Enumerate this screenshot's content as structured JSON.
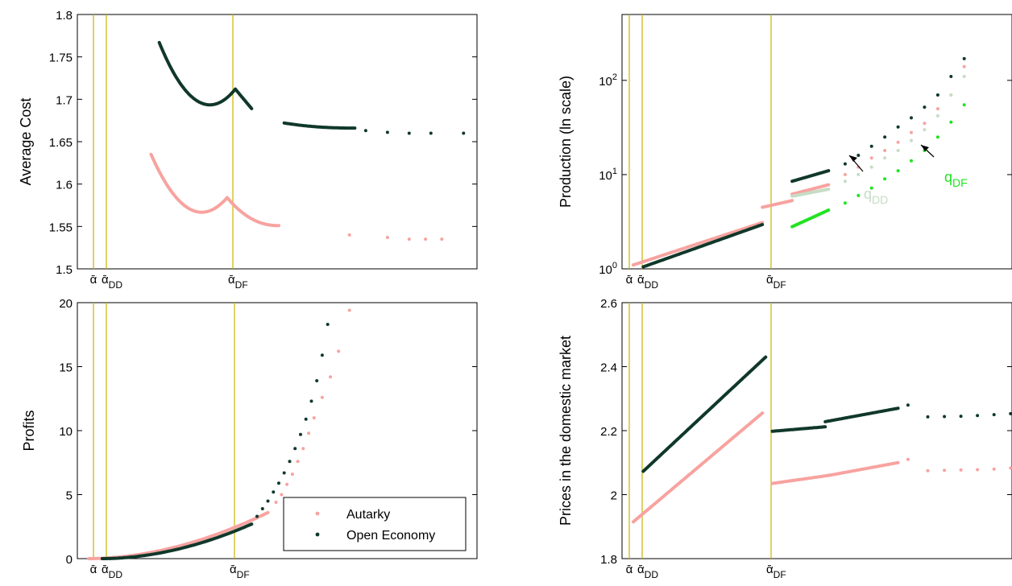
{
  "colors": {
    "autarky": "#f7a3a0",
    "open_economy": "#10382a",
    "q_dd": "#c6dcc6",
    "q_df": "#22e322",
    "threshold_lines": "#c8b400"
  },
  "threshold_labels": {
    "alpha_bar": "ᾱ",
    "dd": "DD",
    "df": "DF"
  },
  "chart_data": [
    {
      "type": "scatter",
      "id": "average-cost",
      "ylabel": "Average Cost",
      "xlabel": "",
      "ylim": [
        1.5,
        1.8
      ],
      "yticks": [
        "1.5",
        "1.55",
        "1.6",
        "1.65",
        "1.7",
        "1.75",
        "1.8"
      ],
      "x_thresholds": [
        "ᾱ",
        "ᾱDD",
        "ᾱDF"
      ],
      "series": [
        {
          "name": "Autarky",
          "segments": [
            {
              "x": [
                1.15,
                2.55
              ],
              "y": [
                1.635,
                1.584
              ],
              "curve": "dip",
              "dip_y": 1.571
            },
            {
              "x": [
                2.55,
                3.5
              ],
              "y": [
                1.584,
                1.551
              ],
              "curve": "decay"
            }
          ],
          "points_x": [
            4.8,
            5.5,
            5.9,
            6.2,
            6.5
          ],
          "points_y": [
            1.54,
            1.537,
            1.535,
            1.535,
            1.535
          ]
        },
        {
          "name": "Open Economy",
          "segments": [
            {
              "x": [
                1.3,
                2.7
              ],
              "y": [
                1.767,
                1.712
              ],
              "curve": "dip",
              "dip_y": 1.698
            },
            {
              "x": [
                2.7,
                3.0
              ],
              "y": [
                1.712,
                1.689
              ],
              "curve": "line"
            },
            {
              "x": [
                3.6,
                4.9
              ],
              "y": [
                1.672,
                1.666
              ],
              "curve": "decay"
            }
          ],
          "points_x": [
            5.1,
            5.5,
            5.9,
            6.3,
            6.9
          ],
          "points_y": [
            1.663,
            1.661,
            1.66,
            1.66,
            1.66
          ]
        }
      ]
    },
    {
      "type": "scatter",
      "id": "production",
      "ylabel": "Production (ln scale)",
      "xlabel": "",
      "log_scale": true,
      "ylim": [
        1,
        500
      ],
      "yticks": [
        "10",
        "10",
        "10"
      ],
      "ytick_exponents": [
        "0",
        "1",
        "2"
      ],
      "x_thresholds": [
        "ᾱ",
        "ᾱDD",
        "ᾱDF"
      ],
      "annotations": [
        {
          "text": "q",
          "sub": "DD",
          "target": "q_dd"
        },
        {
          "text": "q",
          "sub": "DF",
          "target": "q_df"
        }
      ],
      "series": [
        {
          "name": "Autarky",
          "segments": [
            {
              "x": [
                0.0,
                1.95
              ],
              "y": [
                1.1,
                3.1
              ]
            },
            {
              "x": [
                1.95,
                2.4
              ],
              "y": [
                4.5,
                5.3
              ]
            },
            {
              "x": [
                2.4,
                2.95
              ],
              "y": [
                6.2,
                7.8
              ]
            }
          ],
          "points_x": [
            3.2,
            3.4,
            3.6,
            3.8,
            4.0,
            4.2,
            4.4,
            4.6,
            4.8,
            5.0
          ],
          "points_y": [
            10,
            12,
            15,
            18,
            22,
            28,
            35,
            50,
            70,
            140
          ]
        },
        {
          "name": "Open Economy",
          "segments": [
            {
              "x": [
                0.15,
                1.95
              ],
              "y": [
                1.05,
                2.95
              ]
            },
            {
              "x": [
                2.4,
                2.95
              ],
              "y": [
                8.5,
                11
              ]
            }
          ],
          "points_x": [
            3.2,
            3.4,
            3.6,
            3.8,
            4.0,
            4.2,
            4.4,
            4.6,
            4.8,
            5.0
          ],
          "points_y": [
            13,
            16,
            20,
            25,
            32,
            40,
            52,
            70,
            110,
            170
          ]
        },
        {
          "name": "q_DD",
          "segments": [
            {
              "x": [
                2.4,
                2.95
              ],
              "y": [
                5.9,
                7.0
              ]
            }
          ],
          "points_x": [
            3.2,
            3.4,
            3.6,
            3.8,
            4.0,
            4.2,
            4.4,
            4.6,
            4.8,
            5.0
          ],
          "points_y": [
            8.5,
            10,
            12,
            15,
            18,
            23,
            30,
            42,
            70,
            110
          ]
        },
        {
          "name": "q_DF",
          "segments": [
            {
              "x": [
                2.4,
                2.95
              ],
              "y": [
                2.8,
                4.2
              ]
            }
          ],
          "points_x": [
            3.2,
            3.4,
            3.6,
            3.8,
            4.0,
            4.2,
            4.4,
            4.6,
            4.8,
            5.0
          ],
          "points_y": [
            5.0,
            6.0,
            7.2,
            9.0,
            11,
            14,
            18,
            25,
            36,
            55
          ]
        }
      ]
    },
    {
      "type": "scatter",
      "id": "profits",
      "ylabel": "Profits",
      "xlabel": "",
      "ylim": [
        0,
        20
      ],
      "yticks": [
        "0",
        "5",
        "10",
        "15",
        "20"
      ],
      "x_thresholds": [
        "ᾱ",
        "ᾱDD",
        "ᾱDF"
      ],
      "legend": {
        "position": "bottom-right",
        "entries": [
          "Autarky",
          "Open Economy"
        ]
      },
      "series": [
        {
          "name": "Autarky",
          "segments": [
            {
              "x": [
                0.0,
                3.3
              ],
              "y": [
                0.0,
                3.6
              ],
              "curve": "convex"
            }
          ],
          "points_x": [
            3.45,
            3.55,
            3.65,
            3.75,
            3.85,
            3.95,
            4.05,
            4.15,
            4.3,
            4.45,
            4.6,
            4.8
          ],
          "points_y": [
            4.4,
            5.0,
            5.8,
            6.6,
            7.6,
            8.6,
            9.8,
            11.0,
            12.6,
            14.2,
            16.2,
            19.4
          ]
        },
        {
          "name": "Open Economy",
          "segments": [
            {
              "x": [
                0.25,
                3.0
              ],
              "y": [
                0.0,
                2.7
              ],
              "curve": "convex"
            }
          ],
          "points_x": [
            3.1,
            3.2,
            3.3,
            3.4,
            3.5,
            3.6,
            3.7,
            3.8,
            3.9,
            4.0,
            4.1,
            4.2,
            4.3,
            4.4
          ],
          "points_y": [
            3.3,
            3.9,
            4.5,
            5.2,
            5.9,
            6.7,
            7.6,
            8.6,
            9.7,
            10.9,
            12.3,
            13.9,
            15.9,
            18.3
          ]
        }
      ]
    },
    {
      "type": "scatter",
      "id": "prices",
      "ylabel": "Prices in the domestic market",
      "xlabel": "",
      "ylim": [
        1.8,
        2.6
      ],
      "yticks": [
        "1.8",
        "2",
        "2.2",
        "2.4",
        "2.6"
      ],
      "x_thresholds": [
        "ᾱ",
        "ᾱDD",
        "ᾱDF"
      ],
      "series": [
        {
          "name": "Autarky",
          "segments": [
            {
              "x": [
                0.0,
                1.95
              ],
              "y": [
                1.915,
                2.255
              ]
            },
            {
              "x": [
                2.1,
                2.95
              ],
              "y": [
                2.035,
                2.06
              ]
            },
            {
              "x": [
                2.95,
                4.0
              ],
              "y": [
                2.06,
                2.1
              ]
            }
          ],
          "points_x": [
            4.15,
            4.45,
            4.7,
            4.95,
            5.2,
            5.45,
            5.7
          ],
          "points_y": [
            2.11,
            2.075,
            2.076,
            2.077,
            2.078,
            2.08,
            2.083
          ]
        },
        {
          "name": "Open Economy",
          "segments": [
            {
              "x": [
                0.15,
                2.0
              ],
              "y": [
                2.073,
                2.43
              ]
            },
            {
              "x": [
                2.1,
                2.9
              ],
              "y": [
                2.198,
                2.212
              ]
            },
            {
              "x": [
                2.9,
                4.0
              ],
              "y": [
                2.228,
                2.27
              ]
            }
          ],
          "points_x": [
            4.15,
            4.45,
            4.7,
            4.95,
            5.2,
            5.45,
            5.7
          ],
          "points_y": [
            2.28,
            2.243,
            2.244,
            2.245,
            2.247,
            2.25,
            2.253
          ]
        }
      ]
    }
  ]
}
